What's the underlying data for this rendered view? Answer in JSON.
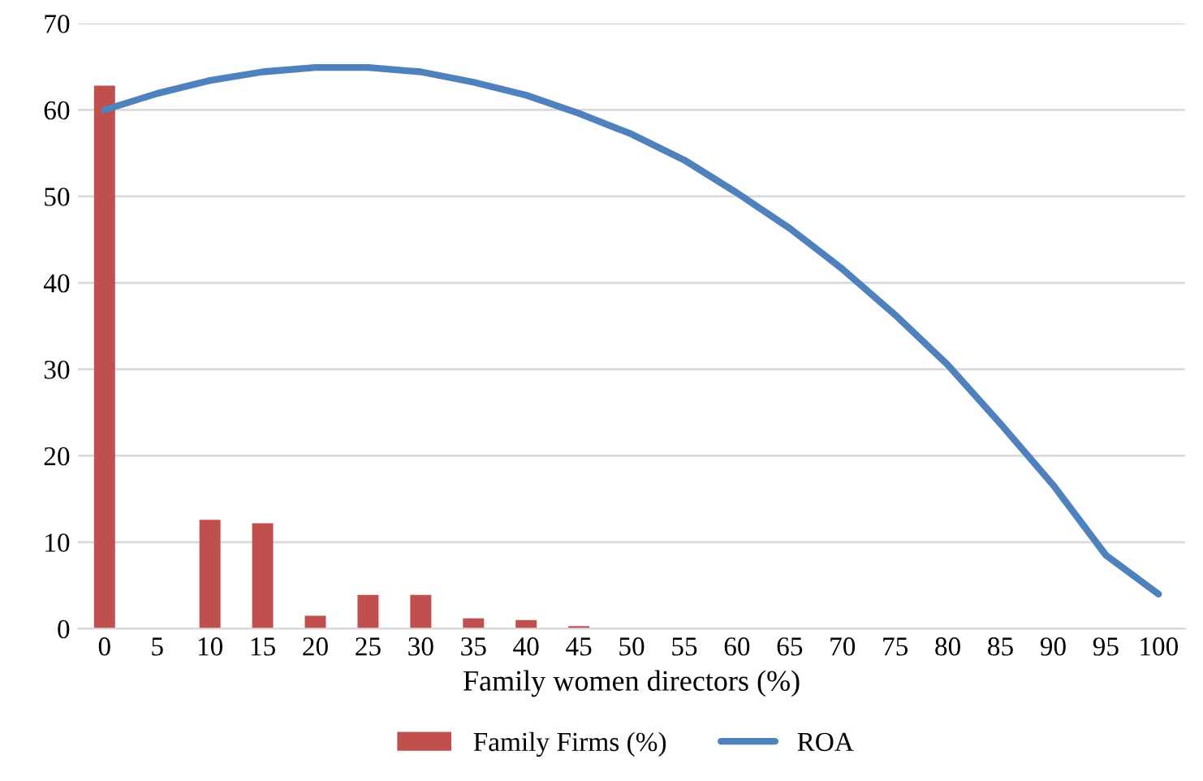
{
  "chart_data": {
    "type": "bar",
    "xlabel": "Family women directors (%)",
    "categories": [
      "0",
      "5",
      "10",
      "15",
      "20",
      "25",
      "30",
      "35",
      "40",
      "45",
      "50",
      "55",
      "60",
      "65",
      "70",
      "75",
      "80",
      "85",
      "90",
      "95",
      "100"
    ],
    "series": [
      {
        "name": "Family Firms (%)",
        "color": "#c0504d",
        "values": [
          62.8,
          0,
          12.6,
          12.2,
          1.5,
          3.9,
          3.9,
          1.2,
          1.0,
          0.3,
          0,
          0,
          0,
          0,
          0,
          0,
          0,
          0,
          0,
          0,
          0
        ]
      },
      {
        "name": "ROA",
        "type": "line",
        "color": "#4f81bd",
        "values": [
          60.0,
          61.9,
          63.4,
          64.4,
          64.9,
          64.9,
          64.4,
          63.2,
          61.7,
          59.6,
          57.2,
          54.2,
          50.4,
          46.3,
          41.6,
          36.3,
          30.5,
          23.7,
          16.6,
          8.5,
          4.0
        ]
      }
    ],
    "ylim": [
      0,
      70
    ],
    "yticks": [
      0,
      10,
      20,
      30,
      40,
      50,
      60,
      70
    ],
    "grid": "y",
    "legend": "bottom",
    "marker": "none",
    "line_style": "solid"
  }
}
